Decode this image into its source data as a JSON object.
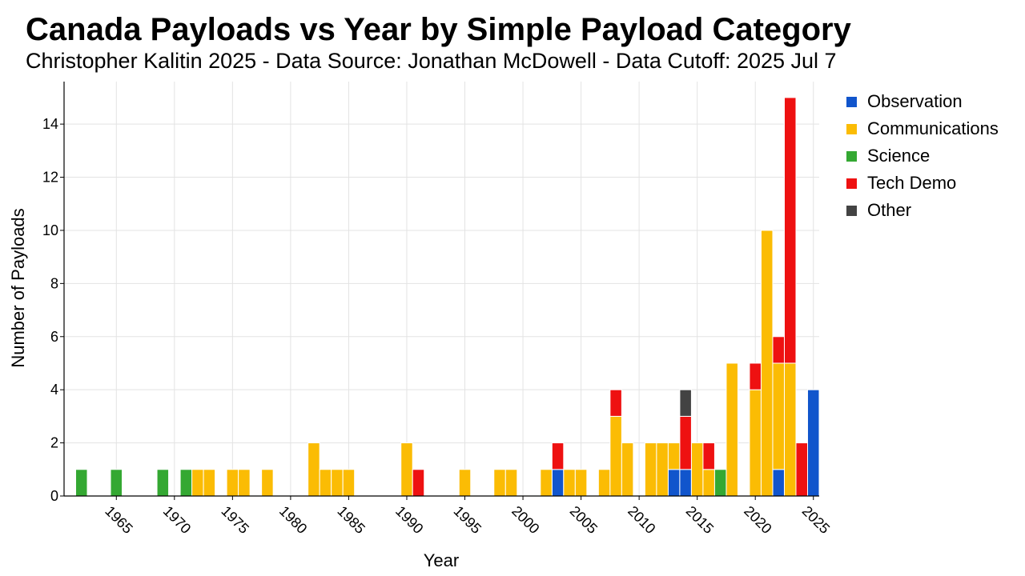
{
  "title": "Canada Payloads vs Year by Simple Payload Category",
  "subtitle": "Christopher Kalitin 2025 - Data Source: Jonathan McDowell - Data Cutoff: 2025 Jul 7",
  "chart_data": {
    "type": "bar",
    "stacked": true,
    "xlabel": "Year",
    "ylabel": "Number of Payloads",
    "xlim": [
      1960.5,
      2025.5
    ],
    "ylim": [
      0,
      15.6
    ],
    "x_ticks": [
      1965,
      1970,
      1975,
      1980,
      1985,
      1990,
      1995,
      2000,
      2005,
      2010,
      2015,
      2020,
      2025
    ],
    "y_ticks": [
      0,
      2,
      4,
      6,
      8,
      10,
      12,
      14
    ],
    "grid": true,
    "legend_position": "right",
    "series": [
      {
        "name": "Observation",
        "color": "#1155cc",
        "points": [
          [
            2003,
            1
          ],
          [
            2013,
            1
          ],
          [
            2014,
            1
          ],
          [
            2022,
            1
          ],
          [
            2025,
            4
          ]
        ]
      },
      {
        "name": "Communications",
        "color": "#fbbc04",
        "points": [
          [
            1972,
            1
          ],
          [
            1973,
            1
          ],
          [
            1975,
            1
          ],
          [
            1976,
            1
          ],
          [
            1978,
            1
          ],
          [
            1982,
            2
          ],
          [
            1983,
            1
          ],
          [
            1984,
            1
          ],
          [
            1985,
            1
          ],
          [
            1990,
            2
          ],
          [
            1995,
            1
          ],
          [
            1998,
            1
          ],
          [
            1999,
            1
          ],
          [
            2002,
            1
          ],
          [
            2004,
            1
          ],
          [
            2005,
            1
          ],
          [
            2007,
            1
          ],
          [
            2008,
            3
          ],
          [
            2009,
            2
          ],
          [
            2011,
            2
          ],
          [
            2012,
            2
          ],
          [
            2013,
            1
          ],
          [
            2015,
            2
          ],
          [
            2016,
            1
          ],
          [
            2018,
            5
          ],
          [
            2020,
            4
          ],
          [
            2021,
            10
          ],
          [
            2022,
            4
          ],
          [
            2023,
            5
          ]
        ]
      },
      {
        "name": "Science",
        "color": "#34a832",
        "points": [
          [
            1962,
            1
          ],
          [
            1965,
            1
          ],
          [
            1969,
            1
          ],
          [
            1971,
            1
          ],
          [
            2017,
            1
          ]
        ]
      },
      {
        "name": "Tech Demo",
        "color": "#ee1111",
        "points": [
          [
            1991,
            1
          ],
          [
            2003,
            1
          ],
          [
            2008,
            1
          ],
          [
            2014,
            2
          ],
          [
            2016,
            1
          ],
          [
            2020,
            1
          ],
          [
            2022,
            1
          ],
          [
            2023,
            10
          ],
          [
            2024,
            2
          ]
        ]
      },
      {
        "name": "Other",
        "color": "#434343",
        "points": [
          [
            2014,
            1
          ]
        ]
      }
    ]
  }
}
